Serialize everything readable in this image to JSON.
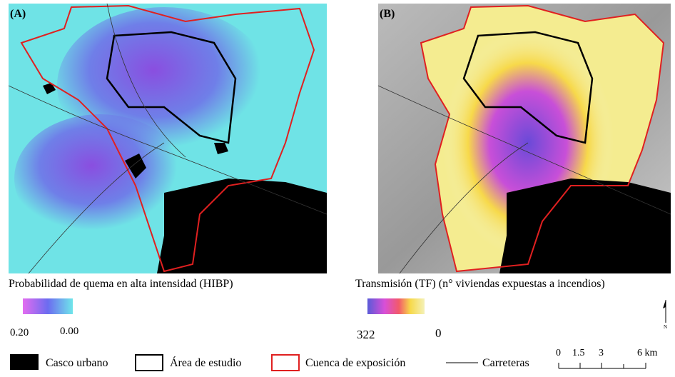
{
  "panels": [
    {
      "label": "(A)",
      "legend_title": "Probabilidad de quema en alta intensidad (HIBP)",
      "legend_min": "0.20",
      "legend_max": "0.00"
    },
    {
      "label": "(B)",
      "legend_title": "Transmisión (TF) (n° viviendas expuestas a incendios)",
      "legend_min": "322",
      "legend_max": "0"
    }
  ],
  "legend": [
    "Casco urbano",
    "Área de estudio",
    "Cuenca de exposición",
    "Carreteras"
  ],
  "scale_bar": [
    "0",
    "1.5",
    "3",
    "6 km"
  ],
  "north": "N"
}
